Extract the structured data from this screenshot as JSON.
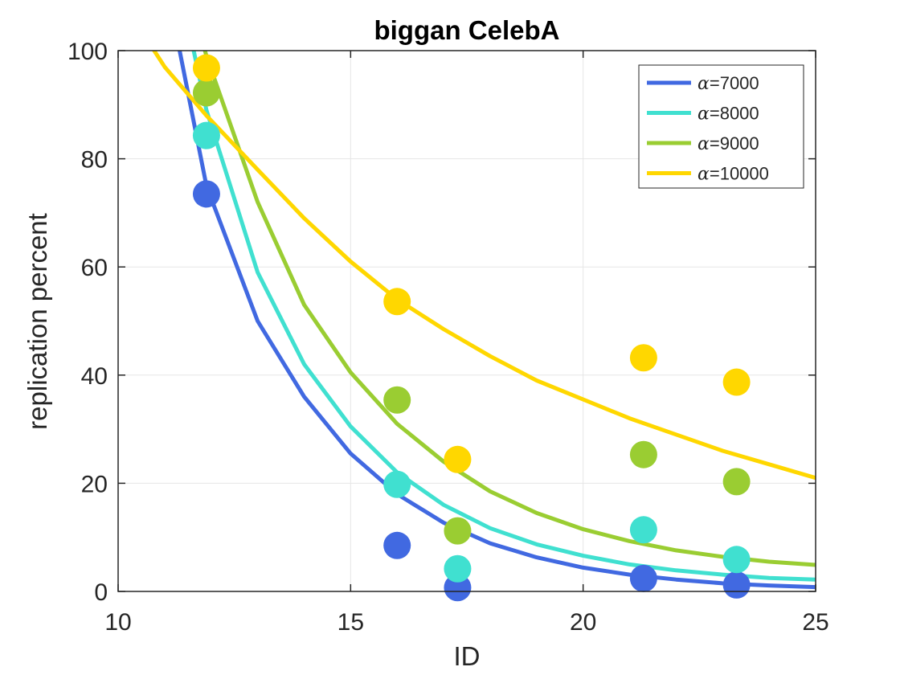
{
  "chart_data": {
    "type": "scatter",
    "title": "biggan CelebA",
    "xlabel": "ID",
    "ylabel": "replication percent",
    "xlim": [
      10,
      25
    ],
    "ylim": [
      0,
      100
    ],
    "xticks": [
      "10",
      "15",
      "20",
      "25"
    ],
    "yticks": [
      "0",
      "20",
      "40",
      "60",
      "80",
      "100"
    ],
    "grid": true,
    "legend_position": "top-right",
    "x": [
      11.9,
      16.0,
      17.3,
      21.3,
      23.3
    ],
    "series": [
      {
        "name": "=7000",
        "symbol": "α",
        "color": "#4169E1",
        "points": [
          73.5,
          8.5,
          0.7,
          2.4,
          1.2
        ],
        "fit": [
          [
            10.5,
            145.0
          ],
          [
            11.0,
            114.0
          ],
          [
            11.9,
            75.0
          ],
          [
            13.0,
            50.0
          ],
          [
            14.0,
            36.0
          ],
          [
            15.0,
            25.5
          ],
          [
            16.0,
            18.0
          ],
          [
            17.0,
            12.7
          ],
          [
            18.0,
            8.9
          ],
          [
            19.0,
            6.3
          ],
          [
            20.0,
            4.4
          ],
          [
            21.0,
            3.1
          ],
          [
            22.0,
            2.2
          ],
          [
            23.0,
            1.5
          ],
          [
            24.0,
            1.1
          ],
          [
            25.0,
            0.8
          ]
        ]
      },
      {
        "name": "=8000",
        "symbol": "α",
        "color": "#40E0D0",
        "points": [
          84.3,
          19.8,
          4.2,
          11.4,
          5.9
        ],
        "fit": [
          [
            10.5,
            148.0
          ],
          [
            11.0,
            125.0
          ],
          [
            11.9,
            89.0
          ],
          [
            13.0,
            59.0
          ],
          [
            14.0,
            42.0
          ],
          [
            15.0,
            30.5
          ],
          [
            16.0,
            22.0
          ],
          [
            17.0,
            16.0
          ],
          [
            18.0,
            11.7
          ],
          [
            19.0,
            8.7
          ],
          [
            20.0,
            6.6
          ],
          [
            21.0,
            5.0
          ],
          [
            22.0,
            3.9
          ],
          [
            23.0,
            3.1
          ],
          [
            24.0,
            2.5
          ],
          [
            25.0,
            2.2
          ]
        ]
      },
      {
        "name": "=9000",
        "symbol": "α",
        "color": "#9ACD32",
        "points": [
          92.2,
          35.4,
          11.2,
          25.3,
          20.3
        ],
        "fit": [
          [
            10.5,
            140.0
          ],
          [
            11.0,
            127.0
          ],
          [
            11.9,
            99.0
          ],
          [
            13.0,
            72.0
          ],
          [
            14.0,
            53.0
          ],
          [
            15.0,
            40.5
          ],
          [
            16.0,
            31.0
          ],
          [
            17.0,
            24.0
          ],
          [
            18.0,
            18.5
          ],
          [
            19.0,
            14.5
          ],
          [
            20.0,
            11.5
          ],
          [
            21.0,
            9.3
          ],
          [
            22.0,
            7.6
          ],
          [
            23.0,
            6.4
          ],
          [
            24.0,
            5.5
          ],
          [
            25.0,
            4.9
          ]
        ]
      },
      {
        "name": "=10000",
        "symbol": "α",
        "color": "#FFD700",
        "points": [
          96.8,
          53.6,
          24.4,
          43.2,
          38.7
        ],
        "fit": [
          [
            10.7,
            101.0
          ],
          [
            11.0,
            97.0
          ],
          [
            11.9,
            88.0
          ],
          [
            13.0,
            78.0
          ],
          [
            14.0,
            69.0
          ],
          [
            15.0,
            61.0
          ],
          [
            16.0,
            54.0
          ],
          [
            17.0,
            48.5
          ],
          [
            18.0,
            43.5
          ],
          [
            19.0,
            39.0
          ],
          [
            20.0,
            35.5
          ],
          [
            21.0,
            32.0
          ],
          [
            22.0,
            29.0
          ],
          [
            23.0,
            26.0
          ],
          [
            24.0,
            23.5
          ],
          [
            25.0,
            21.0
          ]
        ]
      }
    ]
  }
}
